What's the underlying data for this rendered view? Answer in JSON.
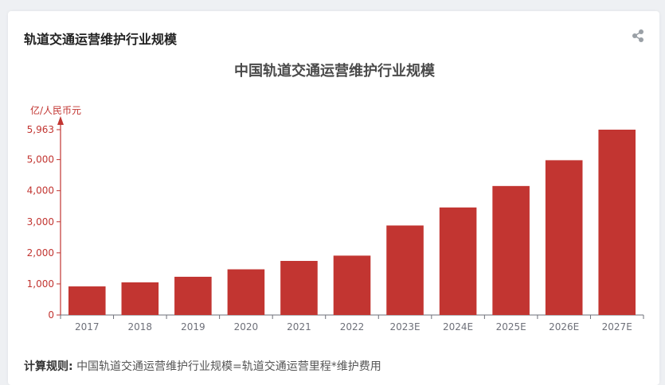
{
  "card": {
    "title": "轨道交通运营维护行业规模",
    "share_icon": "share-icon"
  },
  "footer": {
    "formula_label": "计算规则:",
    "formula_text": "中国轨道交通运营维护行业规模=轨道交通运营里程*维护费用"
  },
  "colors": {
    "bar": "#c23531",
    "axis": "#c23531",
    "x_axis_line": "#6e7079",
    "x_tick_text": "#6e7079"
  },
  "chart_data": {
    "type": "bar",
    "title": "中国轨道交通运营维护行业规模",
    "ylabel": "亿/人民币元",
    "xlabel": "",
    "categories": [
      "2017",
      "2018",
      "2019",
      "2020",
      "2021",
      "2022",
      "2023E",
      "2024E",
      "2025E",
      "2026E",
      "2027E"
    ],
    "values": [
      920,
      1050,
      1230,
      1470,
      1740,
      1910,
      2880,
      3460,
      4150,
      4980,
      5963
    ],
    "ylim": [
      0,
      5963
    ],
    "yticks": [
      0,
      1000,
      2000,
      3000,
      4000,
      5000,
      5963
    ],
    "ytick_labels": [
      "0",
      "1,000",
      "2,000",
      "3,000",
      "4,000",
      "5,000",
      "5,963"
    ],
    "grid": false,
    "legend": "none"
  }
}
